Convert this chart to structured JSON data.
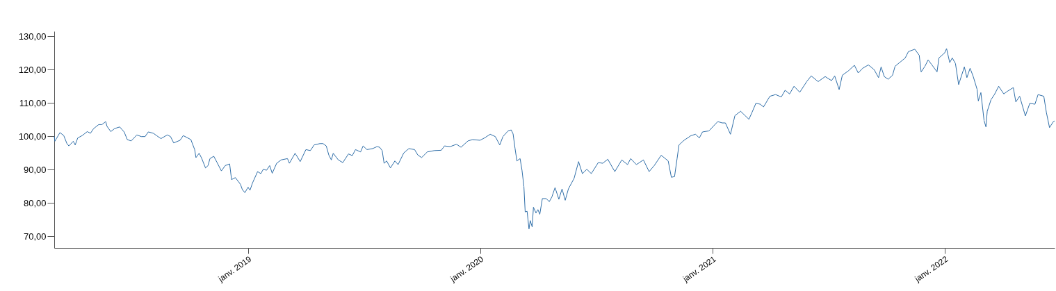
{
  "chart_data": {
    "type": "line",
    "x": [
      "2018-03-02",
      "2018-03-03",
      "2018-03-11",
      "2018-03-17",
      "2018-03-22",
      "2018-03-25",
      "2018-04-01",
      "2018-04-04",
      "2018-04-08",
      "2018-04-15",
      "2018-04-23",
      "2018-04-28",
      "2018-05-03",
      "2018-05-11",
      "2018-05-16",
      "2018-05-22",
      "2018-05-24",
      "2018-05-30",
      "2018-06-05",
      "2018-06-13",
      "2018-06-20",
      "2018-06-25",
      "2018-07-01",
      "2018-07-10",
      "2018-07-17",
      "2018-07-23",
      "2018-07-28",
      "2018-08-05",
      "2018-08-10",
      "2018-08-17",
      "2018-08-27",
      "2018-09-01",
      "2018-09-06",
      "2018-09-16",
      "2018-09-21",
      "2018-09-28",
      "2018-10-03",
      "2018-10-09",
      "2018-10-11",
      "2018-10-16",
      "2018-10-20",
      "2018-10-26",
      "2018-10-30",
      "2018-11-02",
      "2018-11-08",
      "2018-11-13",
      "2018-11-20",
      "2018-11-26",
      "2018-12-03",
      "2018-12-06",
      "2018-12-12",
      "2018-12-20",
      "2018-12-23",
      "2018-12-27",
      "2019-01-01",
      "2019-01-04",
      "2019-01-08",
      "2019-01-16",
      "2019-01-21",
      "2019-01-25",
      "2019-01-30",
      "2019-02-04",
      "2019-02-08",
      "2019-02-15",
      "2019-02-22",
      "2019-03-04",
      "2019-03-07",
      "2019-03-16",
      "2019-03-24",
      "2019-04-02",
      "2019-04-09",
      "2019-04-15",
      "2019-04-24",
      "2019-04-29",
      "2019-05-04",
      "2019-05-08",
      "2019-05-12",
      "2019-05-15",
      "2019-05-23",
      "2019-05-30",
      "2019-06-08",
      "2019-06-14",
      "2019-06-19",
      "2019-06-27",
      "2019-07-01",
      "2019-07-07",
      "2019-07-16",
      "2019-07-23",
      "2019-07-27",
      "2019-07-31",
      "2019-08-03",
      "2019-08-07",
      "2019-08-13",
      "2019-08-20",
      "2019-08-25",
      "2019-09-03",
      "2019-09-11",
      "2019-09-20",
      "2019-09-25",
      "2019-10-01",
      "2019-10-10",
      "2019-10-21",
      "2019-11-01",
      "2019-11-06",
      "2019-11-15",
      "2019-11-25",
      "2019-12-02",
      "2019-12-13",
      "2019-12-20",
      "2020-01-01",
      "2020-01-08",
      "2020-01-17",
      "2020-01-25",
      "2020-02-01",
      "2020-02-06",
      "2020-02-14",
      "2020-02-19",
      "2020-02-22",
      "2020-02-25",
      "2020-02-28",
      "2020-03-04",
      "2020-03-07",
      "2020-03-10",
      "2020-03-12",
      "2020-03-15",
      "2020-03-18",
      "2020-03-20",
      "2020-03-23",
      "2020-03-25",
      "2020-03-29",
      "2020-04-01",
      "2020-04-04",
      "2020-04-08",
      "2020-04-14",
      "2020-04-19",
      "2020-04-23",
      "2020-04-28",
      "2020-05-04",
      "2020-05-09",
      "2020-05-14",
      "2020-05-19",
      "2020-05-28",
      "2020-06-04",
      "2020-06-10",
      "2020-06-17",
      "2020-06-24",
      "2020-07-05",
      "2020-07-12",
      "2020-07-20",
      "2020-07-31",
      "2020-08-11",
      "2020-08-20",
      "2020-08-25",
      "2020-09-03",
      "2020-09-14",
      "2020-09-23",
      "2020-10-01",
      "2020-10-12",
      "2020-10-23",
      "2020-10-28",
      "2020-11-02",
      "2020-11-06",
      "2020-11-09",
      "2020-11-17",
      "2020-11-28",
      "2020-12-05",
      "2020-12-11",
      "2020-12-16",
      "2020-12-26",
      "2021-01-09",
      "2021-01-16",
      "2021-01-21",
      "2021-01-29",
      "2021-02-05",
      "2021-02-14",
      "2021-02-21",
      "2021-02-27",
      "2021-03-04",
      "2021-03-10",
      "2021-03-17",
      "2021-03-22",
      "2021-04-01",
      "2021-04-10",
      "2021-04-19",
      "2021-04-25",
      "2021-05-02",
      "2021-05-09",
      "2021-05-18",
      "2021-05-29",
      "2021-06-05",
      "2021-06-16",
      "2021-06-27",
      "2021-07-07",
      "2021-07-12",
      "2021-07-19",
      "2021-07-24",
      "2021-08-03",
      "2021-08-12",
      "2021-08-18",
      "2021-08-25",
      "2021-09-03",
      "2021-09-12",
      "2021-09-19",
      "2021-09-23",
      "2021-09-28",
      "2021-10-04",
      "2021-10-11",
      "2021-10-15",
      "2021-10-24",
      "2021-10-31",
      "2021-11-05",
      "2021-11-15",
      "2021-11-22",
      "2021-11-25",
      "2021-12-01",
      "2021-12-06",
      "2021-12-12",
      "2021-12-20",
      "2021-12-23",
      "2022-01-01",
      "2022-01-04",
      "2022-01-09",
      "2022-01-13",
      "2022-01-18",
      "2022-01-23",
      "2022-02-01",
      "2022-02-05",
      "2022-02-10",
      "2022-02-15",
      "2022-02-21",
      "2022-02-23",
      "2022-02-27",
      "2022-03-04",
      "2022-03-07",
      "2022-03-09",
      "2022-03-15",
      "2022-03-20",
      "2022-03-27",
      "2022-04-04",
      "2022-04-09",
      "2022-04-19",
      "2022-04-23",
      "2022-04-29",
      "2022-05-08",
      "2022-05-15",
      "2022-05-23",
      "2022-05-28",
      "2022-06-06",
      "2022-06-10",
      "2022-06-15",
      "2022-06-21",
      "2022-06-23"
    ],
    "series": [
      {
        "color": "#2f6ea8",
        "values": [
          100.0,
          98.5,
          101.1,
          100.2,
          97.8,
          97.1,
          98.5,
          97.4,
          99.5,
          100.2,
          101.4,
          100.9,
          102.3,
          103.5,
          103.5,
          104.4,
          103.0,
          101.4,
          102.3,
          102.8,
          101.3,
          99.0,
          98.6,
          100.4,
          99.9,
          99.9,
          101.3,
          100.9,
          100.2,
          99.3,
          100.4,
          99.9,
          98.0,
          98.8,
          100.2,
          99.5,
          99.0,
          96.0,
          93.6,
          94.9,
          93.4,
          90.5,
          91.2,
          93.3,
          94.0,
          92.2,
          89.6,
          91.2,
          91.7,
          87.0,
          87.6,
          85.6,
          84.0,
          83.1,
          84.7,
          83.8,
          86.0,
          89.4,
          88.8,
          90.1,
          89.8,
          91.2,
          88.9,
          91.9,
          92.9,
          93.3,
          91.9,
          94.9,
          92.4,
          96.0,
          95.7,
          97.4,
          97.8,
          97.8,
          97.1,
          94.4,
          92.9,
          94.9,
          92.9,
          92.1,
          94.7,
          94.2,
          96.0,
          95.3,
          97.1,
          96.0,
          96.3,
          96.9,
          96.7,
          95.7,
          91.9,
          92.6,
          90.5,
          92.6,
          91.5,
          95.0,
          96.3,
          96.0,
          94.4,
          93.6,
          95.3,
          95.7,
          95.8,
          97.1,
          96.9,
          97.6,
          96.7,
          98.6,
          99.0,
          98.8,
          99.5,
          100.6,
          99.9,
          97.4,
          99.9,
          101.6,
          101.9,
          100.7,
          96.4,
          92.6,
          93.3,
          89.8,
          84.9,
          77.3,
          77.5,
          72.2,
          74.7,
          72.8,
          78.7,
          77.0,
          78.0,
          76.6,
          81.3,
          81.3,
          80.4,
          81.8,
          84.6,
          81.1,
          84.2,
          80.8,
          84.2,
          87.4,
          92.4,
          88.8,
          90.1,
          88.8,
          92.1,
          91.9,
          93.1,
          89.4,
          92.9,
          91.5,
          93.3,
          91.5,
          92.9,
          89.4,
          91.2,
          94.3,
          92.6,
          87.7,
          87.9,
          93.3,
          97.4,
          98.8,
          100.2,
          100.6,
          99.5,
          101.3,
          101.6,
          104.4,
          104.0,
          104.0,
          100.6,
          106.2,
          107.5,
          106.2,
          105.1,
          107.2,
          109.9,
          109.6,
          108.8,
          112.0,
          112.5,
          111.8,
          113.8,
          112.7,
          115.0,
          113.2,
          116.4,
          118.1,
          116.4,
          117.9,
          116.7,
          118.1,
          114.0,
          118.3,
          119.7,
          121.3,
          119.0,
          120.4,
          121.4,
          120.0,
          117.6,
          120.8,
          117.9,
          117.1,
          118.3,
          121.0,
          122.4,
          123.5,
          125.4,
          126.1,
          124.3,
          119.3,
          121.0,
          122.9,
          121.4,
          119.3,
          123.5,
          125.0,
          126.3,
          122.1,
          123.5,
          121.8,
          115.5,
          120.8,
          117.6,
          120.4,
          117.9,
          114.1,
          110.6,
          113.1,
          104.7,
          102.8,
          107.5,
          111.0,
          112.4,
          115.0,
          112.7,
          113.4,
          114.6,
          110.3,
          112.0,
          106.1,
          109.9,
          109.6,
          112.5,
          112.0,
          107.2,
          102.6,
          104.4,
          104.6
        ]
      }
    ],
    "xlim": [
      "2018-03-02",
      "2022-06-23"
    ],
    "xticks": [
      {
        "value": "2019-01-01",
        "label": "janv. 2019"
      },
      {
        "value": "2020-01-01",
        "label": "janv. 2020"
      },
      {
        "value": "2021-01-01",
        "label": "janv. 2021"
      },
      {
        "value": "2022-01-01",
        "label": "janv. 2022"
      }
    ],
    "ylim": [
      66.5,
      131.5
    ],
    "yticks": [
      {
        "value": 70,
        "label": "70,00"
      },
      {
        "value": 80,
        "label": "80,00"
      },
      {
        "value": 90,
        "label": "90,00"
      },
      {
        "value": 100,
        "label": "100,00"
      },
      {
        "value": 110,
        "label": "110,00"
      },
      {
        "value": 120,
        "label": "120,00"
      },
      {
        "value": 130,
        "label": "130,00"
      }
    ],
    "grid": false,
    "legend": false
  }
}
